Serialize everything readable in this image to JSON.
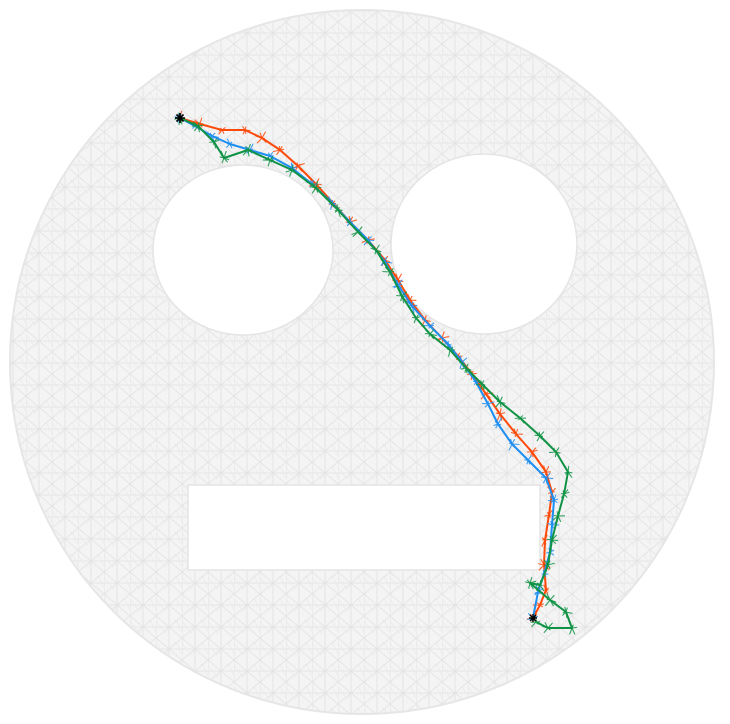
{
  "colors": {
    "background": "#ffffff",
    "mesh": "#e6e6e6",
    "mesh_fill": "#f3f3f3",
    "path_orange": "#fd4a0a",
    "path_blue": "#1f8ef1",
    "path_green": "#109345",
    "endpoint": "#000000"
  },
  "paths": [
    {
      "color_key": "path_orange"
    },
    {
      "color_key": "path_blue"
    },
    {
      "color_key": "path_green"
    }
  ]
}
